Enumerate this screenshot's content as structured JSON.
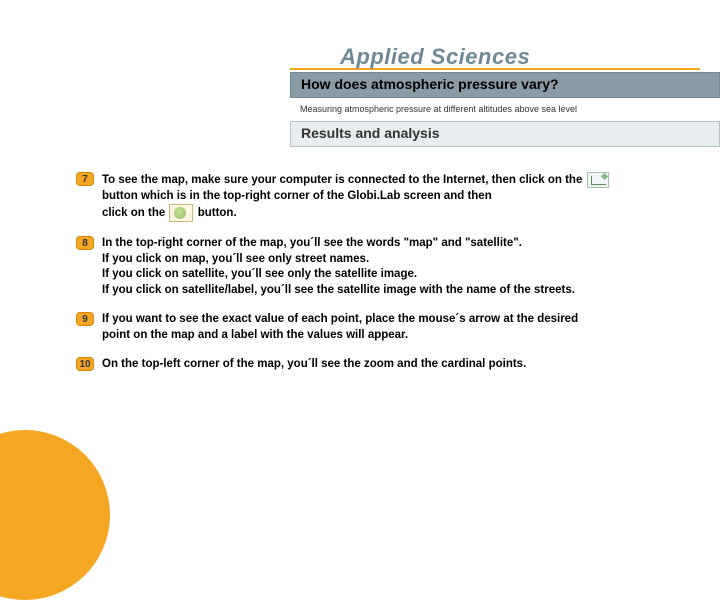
{
  "brand": "Applied Sciences",
  "title": "How does atmospheric pressure vary?",
  "subtitle": "Measuring atmospheric pressure at different altitudes above sea level",
  "section": "Results and analysis",
  "colors": {
    "accent_orange": "#f5a623",
    "header_gray": "#8a9ba5",
    "brand_gray": "#6f8a96",
    "section_bg": "#e8edef"
  },
  "steps": [
    {
      "num": "7",
      "line1_a": "To see the map, make sure your computer is connected to the Internet, then click on the",
      "line2": "button which is in the top-right corner of the Globi.Lab screen and then",
      "line3_a": "click on the",
      "line3_b": "button."
    },
    {
      "num": "8",
      "line1": "In the top-right corner of the map, you´ll see the words \"map\" and \"satellite\".",
      "line2": "If you click on map, you´ll see only street names.",
      "line3": "If you click on satellite, you´ll see only the satellite image.",
      "line4": "If you click on satellite/label, you´ll see the satellite image with the name of the streets."
    },
    {
      "num": "9",
      "line1": "If you want to see the exact value of each point, place the mouse´s arrow at the desired",
      "line2": "point on the map and a label with the values will appear."
    },
    {
      "num": "10",
      "line1": "On the top-left corner of the map, you´ll see the zoom and the cardinal points."
    }
  ]
}
